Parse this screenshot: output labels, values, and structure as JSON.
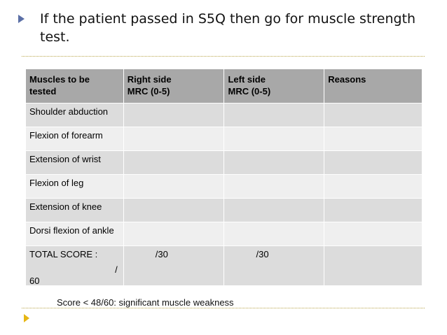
{
  "bullet": {
    "text": "If the patient passed in S5Q  then go for muscle strength test."
  },
  "table": {
    "headers": [
      "Muscles  to be tested",
      "Right side MRC (0-5)",
      "Left side MRC (0-5)",
      "Reasons"
    ],
    "header_lines": [
      [
        "Muscles  to be",
        "tested"
      ],
      [
        "Right side",
        "MRC (0-5)"
      ],
      [
        "Left side",
        "MRC (0-5)"
      ],
      [
        "Reasons",
        ""
      ]
    ],
    "rows": [
      [
        "Shoulder abduction",
        "",
        "",
        ""
      ],
      [
        "Flexion of forearm",
        "",
        "",
        ""
      ],
      [
        "Extension of wrist",
        "",
        "",
        ""
      ],
      [
        "Flexion of leg",
        "",
        "",
        ""
      ],
      [
        "Extension of knee",
        "",
        "",
        ""
      ],
      [
        "Dorsi flexion of ankle",
        "",
        "",
        ""
      ]
    ],
    "total": {
      "label": "TOTAL SCORE :",
      "slash": "/",
      "max": "60",
      "right": "/30",
      "left": "/30",
      "reasons": ""
    }
  },
  "note": "Score < 48/60: significant muscle weakness",
  "colors": {
    "bullet_arrow": "#5b6fa6",
    "corner_arrow": "#e6b614",
    "divider": "#b9a54a",
    "header_bg": "#a8a8a8",
    "row_bg_a": "#dcdcdc",
    "row_bg_b": "#efefef"
  }
}
